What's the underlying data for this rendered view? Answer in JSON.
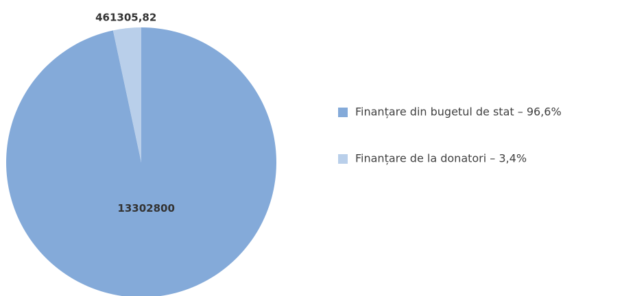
{
  "chart_data": {
    "type": "pie",
    "categories": [
      "Finanțare din bugetul de stat – 96,6%",
      "Finanțare de la donatori – 3,4%"
    ],
    "values": [
      13302800,
      461305.82
    ],
    "value_labels": [
      "13302800",
      "461305,82"
    ],
    "colors": [
      "#84aad9",
      "#b9cfea"
    ]
  }
}
